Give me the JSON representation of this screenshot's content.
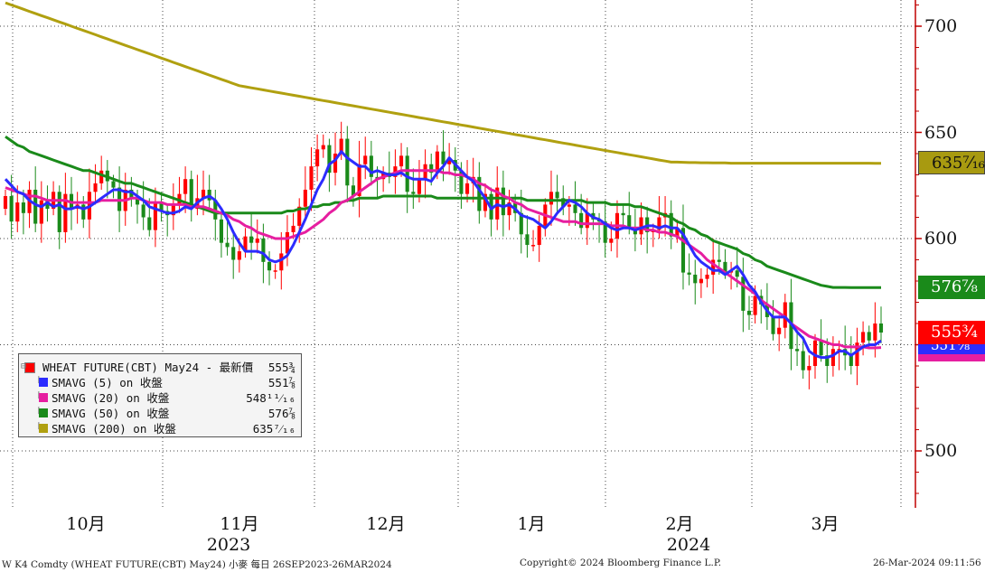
{
  "chart_data": {
    "type": "candlestick",
    "title": "",
    "instrument": "W K4 Comdty (WHEAT FUTURE(CBT) May24)",
    "frequency": "每日",
    "date_range": "26SEP2023-26MAR2024",
    "y_ticks": [
      "700",
      "650",
      "600",
      "550",
      "500"
    ],
    "y_tick_values": [
      700,
      650,
      600,
      550,
      500
    ],
    "ylim": [
      475,
      712
    ],
    "x_month_labels": [
      "10月",
      "11月",
      "12月",
      "1月",
      "2月",
      "3月"
    ],
    "x_year_labels": [
      "2023",
      "2024"
    ],
    "grid": true,
    "legend_position": "bottom-left",
    "legend": [
      {
        "name": "WHEAT FUTURE(CBT) May24 - 最新價",
        "value": "555¾",
        "color": "#ff0000"
      },
      {
        "name": "SMAVG (5)  on 收盤",
        "value": "551⅞",
        "color": "#2c2cff"
      },
      {
        "name": "SMAVG (20)  on 收盤",
        "value": "548¹¹⁄₁₆",
        "color": "#e61ea0"
      },
      {
        "name": "SMAVG (50)  on 收盤",
        "value": "576⅞",
        "color": "#1a8a1a"
      },
      {
        "name": "SMAVG (200)  on 收盤",
        "value": "635⁷⁄₁₆",
        "color": "#b0a010"
      }
    ],
    "value_tags": [
      {
        "label": "635⁷⁄₁₆",
        "value": 635.44,
        "color": "#a89a10"
      },
      {
        "label": "576⁷⁄₈",
        "value": 576.875,
        "color": "#1a8a1a"
      },
      {
        "label": "555³⁄₄",
        "value": 555.75,
        "color": "#ff0000"
      },
      {
        "label": "551⁷⁄₈",
        "value": 551.875,
        "color": "#2c2cff"
      },
      {
        "label": "548¹¹⁄₁₆",
        "value": 548.69,
        "color": "#e61ea0"
      }
    ],
    "closes": [
      620,
      608,
      617,
      612,
      623,
      607,
      618,
      614,
      622,
      603,
      621,
      614,
      616,
      609,
      622,
      626,
      632,
      627,
      624,
      613,
      623,
      619,
      616,
      610,
      604,
      617,
      613,
      611,
      616,
      621,
      628,
      614,
      619,
      623,
      618,
      609,
      598,
      596,
      590,
      594,
      601,
      598,
      600,
      589,
      585,
      585,
      593,
      603,
      606,
      615,
      623,
      634,
      642,
      644,
      631,
      640,
      647,
      625,
      620,
      635,
      639,
      629,
      628,
      631,
      629,
      634,
      639,
      622,
      621,
      628,
      635,
      631,
      641,
      635,
      637,
      632,
      621,
      626,
      629,
      613,
      621,
      609,
      624,
      611,
      617,
      612,
      602,
      597,
      597,
      606,
      616,
      622,
      619,
      615,
      616,
      612,
      605,
      612,
      609,
      608,
      598,
      600,
      612,
      611,
      605,
      602,
      610,
      603,
      604,
      610,
      612,
      601,
      605,
      584,
      583,
      579,
      581,
      583,
      590,
      589,
      584,
      585,
      582,
      566,
      564,
      573,
      569,
      563,
      555,
      558,
      570,
      548,
      547,
      538,
      540,
      552,
      545,
      540,
      548,
      548,
      545,
      540,
      551,
      556,
      552,
      560,
      555.75
    ],
    "sma5": [
      628,
      625,
      622,
      621,
      618,
      616,
      615,
      617,
      615,
      616,
      614,
      614,
      615,
      614,
      615,
      617,
      619,
      621,
      623,
      623,
      622,
      622,
      620,
      618,
      615,
      614,
      613,
      612,
      612,
      613,
      615,
      614,
      617,
      619,
      620,
      618,
      614,
      609,
      603,
      598,
      594,
      594,
      594,
      593,
      590,
      589,
      590,
      592,
      597,
      603,
      609,
      616,
      623,
      628,
      635,
      637,
      641,
      638,
      636,
      634,
      634,
      631,
      632,
      631,
      630,
      630,
      631,
      629,
      628,
      628,
      628,
      627,
      631,
      634,
      638,
      635,
      632,
      629,
      627,
      623,
      619,
      614,
      616,
      615,
      616,
      614,
      611,
      610,
      609,
      607,
      605,
      608,
      612,
      615,
      618,
      617,
      615,
      612,
      610,
      609,
      607,
      605,
      604,
      605,
      605,
      604,
      605,
      606,
      606,
      605,
      606,
      605,
      605,
      602,
      597,
      592,
      589,
      587,
      585,
      585,
      583,
      585,
      587,
      583,
      578,
      575,
      570,
      566,
      563,
      563,
      563,
      560,
      556,
      553,
      547,
      545,
      544,
      544,
      545,
      547,
      547,
      545,
      547,
      549,
      550,
      550,
      551.875
    ],
    "sma20": [
      624,
      623,
      622,
      621,
      620,
      620,
      619,
      618,
      618,
      618,
      618,
      617,
      617,
      617,
      617,
      617,
      618,
      618,
      618,
      618,
      618,
      619,
      619,
      618,
      617,
      617,
      617,
      616,
      616,
      616,
      616,
      615,
      615,
      615,
      614,
      613,
      612,
      611,
      609,
      608,
      606,
      605,
      603,
      602,
      601,
      600,
      600,
      600,
      601,
      602,
      603,
      605,
      607,
      609,
      612,
      614,
      617,
      618,
      620,
      622,
      624,
      626,
      628,
      629,
      630,
      631,
      632,
      632,
      632,
      632,
      632,
      632,
      632,
      631,
      631,
      630,
      630,
      629,
      628,
      626,
      625,
      623,
      622,
      620,
      619,
      617,
      616,
      614,
      613,
      612,
      611,
      610,
      609,
      608,
      608,
      608,
      607,
      607,
      607,
      607,
      607,
      606,
      606,
      606,
      605,
      605,
      605,
      604,
      604,
      603,
      603,
      602,
      601,
      599,
      597,
      595,
      593,
      590,
      588,
      586,
      584,
      582,
      580,
      578,
      576,
      574,
      571,
      569,
      567,
      565,
      563,
      560,
      558,
      556,
      554,
      553,
      552,
      551,
      550,
      550,
      549,
      549,
      549,
      549,
      548.5,
      548.5,
      548.69
    ],
    "sma50": [
      648,
      646,
      644,
      643,
      641,
      640,
      639,
      638,
      637,
      636,
      635,
      634,
      633,
      632,
      632,
      631,
      630,
      629,
      628,
      627,
      626,
      626,
      625,
      624,
      623,
      622,
      621,
      620,
      619,
      618,
      617,
      616,
      615,
      614,
      613,
      612,
      612,
      612,
      612,
      612,
      612,
      612,
      612,
      612,
      612,
      612,
      612,
      613,
      613,
      614,
      614,
      615,
      615,
      616,
      616,
      617,
      617,
      618,
      618,
      619,
      619,
      619,
      619,
      620,
      620,
      620,
      620,
      620,
      620,
      620,
      620,
      620,
      619,
      619,
      619,
      619,
      619,
      619,
      619,
      619,
      619,
      619,
      619,
      619,
      619,
      619,
      619,
      618,
      618,
      618,
      618,
      618,
      618,
      618,
      618,
      618,
      618,
      617,
      617,
      617,
      617,
      616,
      616,
      616,
      616,
      615,
      615,
      614,
      613,
      612,
      611,
      610,
      608,
      607,
      605,
      604,
      602,
      601,
      599,
      598,
      597,
      596,
      595,
      593,
      592,
      590,
      589,
      587,
      586,
      585,
      584,
      583,
      582,
      581,
      580,
      579,
      578,
      577.5,
      577,
      577,
      577,
      576.9,
      576.9,
      576.9,
      576.875,
      576.875,
      576.875
    ],
    "sma200": [
      711,
      710,
      709,
      708,
      707,
      706,
      705,
      704,
      703,
      702,
      701,
      700,
      699,
      698,
      697,
      696,
      695,
      694,
      693,
      692,
      691,
      690,
      689,
      688,
      687,
      686,
      685,
      684,
      683,
      682,
      681,
      680,
      679,
      678,
      677,
      676,
      675,
      674,
      673,
      672,
      671.5,
      671,
      670.5,
      670,
      669.5,
      669,
      668.5,
      668,
      667.5,
      667,
      666.5,
      666,
      665.5,
      665,
      664.5,
      664,
      663.5,
      663,
      662.5,
      662,
      661.5,
      661,
      660.5,
      660,
      659.5,
      659,
      658.5,
      658,
      657.5,
      657,
      656.5,
      656,
      655.5,
      655,
      654.5,
      654,
      653.5,
      653,
      652.5,
      652,
      651.5,
      651,
      650.5,
      650,
      649.5,
      649,
      648.5,
      648,
      647.5,
      647,
      646.5,
      646,
      645.5,
      645,
      644.5,
      644,
      643.5,
      643,
      642.5,
      642,
      641.5,
      641,
      640.5,
      640,
      639.5,
      639,
      638.5,
      638,
      637.5,
      637,
      636.5,
      636,
      636,
      635.9,
      635.8,
      635.8,
      635.7,
      635.7,
      635.6,
      635.6,
      635.6,
      635.5,
      635.5,
      635.5,
      635.5,
      635.5,
      635.5,
      635.5,
      635.5,
      635.5,
      635.5,
      635.5,
      635.5,
      635.5,
      635.5,
      635.5,
      635.5,
      635.5,
      635.5,
      635.5,
      635.5,
      635.5,
      635.5,
      635.5,
      635.5,
      635.44,
      635.44
    ]
  },
  "footer": {
    "left": "W K4 Comdty (WHEAT FUTURE(CBT) May24) 小麥  每日 26SEP2023-26MAR2024",
    "center": "Copyright© 2024 Bloomberg Finance L.P.",
    "right": "26-Mar-2024 09:11:56"
  }
}
